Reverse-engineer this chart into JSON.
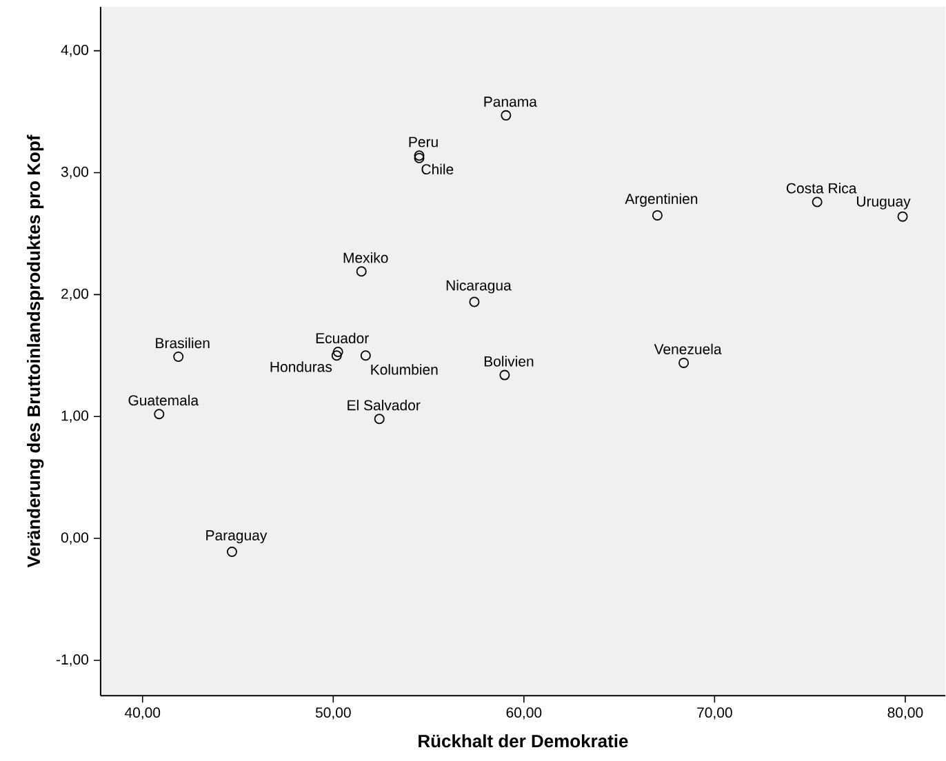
{
  "chart_data": {
    "type": "scatter",
    "xlabel": "Rückhalt der Demokratie",
    "ylabel": "Veränderung des Bruttoinlandsproduktes pro Kopf",
    "x": [
      59.06,
      54.51,
      54.51,
      51.48,
      57.4,
      41.88,
      50.25,
      50.18,
      51.7,
      58.99,
      40.87,
      52.42,
      44.69,
      67.0,
      75.38,
      79.86,
      68.38
    ],
    "values": [
      3.47,
      3.14,
      3.12,
      2.19,
      1.94,
      1.49,
      1.53,
      1.5,
      1.5,
      1.34,
      1.02,
      0.98,
      -0.11,
      2.65,
      2.76,
      2.64,
      1.44
    ],
    "color": "#000000",
    "marker": "circle",
    "xlim": [
      37.8,
      82.1
    ],
    "ylim": [
      -1.29,
      4.36
    ],
    "xticks": [
      {
        "value": 40,
        "label": "40,00"
      },
      {
        "value": 50,
        "label": "50,00"
      },
      {
        "value": 60,
        "label": "60,00"
      },
      {
        "value": 70,
        "label": "70,00"
      },
      {
        "value": 80,
        "label": "80,00"
      }
    ],
    "yticks": [
      {
        "value": -1,
        "label": "-1,00"
      },
      {
        "value": 0,
        "label": "0,00"
      },
      {
        "value": 1,
        "label": "1,00"
      },
      {
        "value": 2,
        "label": "2,00"
      },
      {
        "value": 3,
        "label": "3,00"
      },
      {
        "value": 4,
        "label": "4,00"
      }
    ],
    "annotations": [
      {
        "text": "Panama",
        "x": 59.06,
        "y": 3.47
      },
      {
        "text": "Peru",
        "x": 54.51,
        "y": 3.14
      },
      {
        "text": "Chile",
        "x": 54.51,
        "y": 3.12
      },
      {
        "text": "Mexiko",
        "x": 51.48,
        "y": 2.19
      },
      {
        "text": "Nicaragua",
        "x": 57.4,
        "y": 1.94
      },
      {
        "text": "Brasilien",
        "x": 41.88,
        "y": 1.49
      },
      {
        "text": "Ecuador",
        "x": 50.25,
        "y": 1.53
      },
      {
        "text": "Honduras",
        "x": 50.18,
        "y": 1.5
      },
      {
        "text": "Kolumbien",
        "x": 51.7,
        "y": 1.5
      },
      {
        "text": "Bolivien",
        "x": 58.99,
        "y": 1.34
      },
      {
        "text": "Guatemala",
        "x": 40.87,
        "y": 1.02
      },
      {
        "text": "El Salvador",
        "x": 52.42,
        "y": 0.98
      },
      {
        "text": "Paraguay",
        "x": 44.69,
        "y": -0.11
      },
      {
        "text": "Argentinien",
        "x": 67.0,
        "y": 2.65
      },
      {
        "text": "Costa Rica",
        "x": 75.38,
        "y": 2.76
      },
      {
        "text": "Uruguay",
        "x": 79.86,
        "y": 2.64
      },
      {
        "text": "Venezuela",
        "x": 68.38,
        "y": 1.44
      }
    ]
  }
}
